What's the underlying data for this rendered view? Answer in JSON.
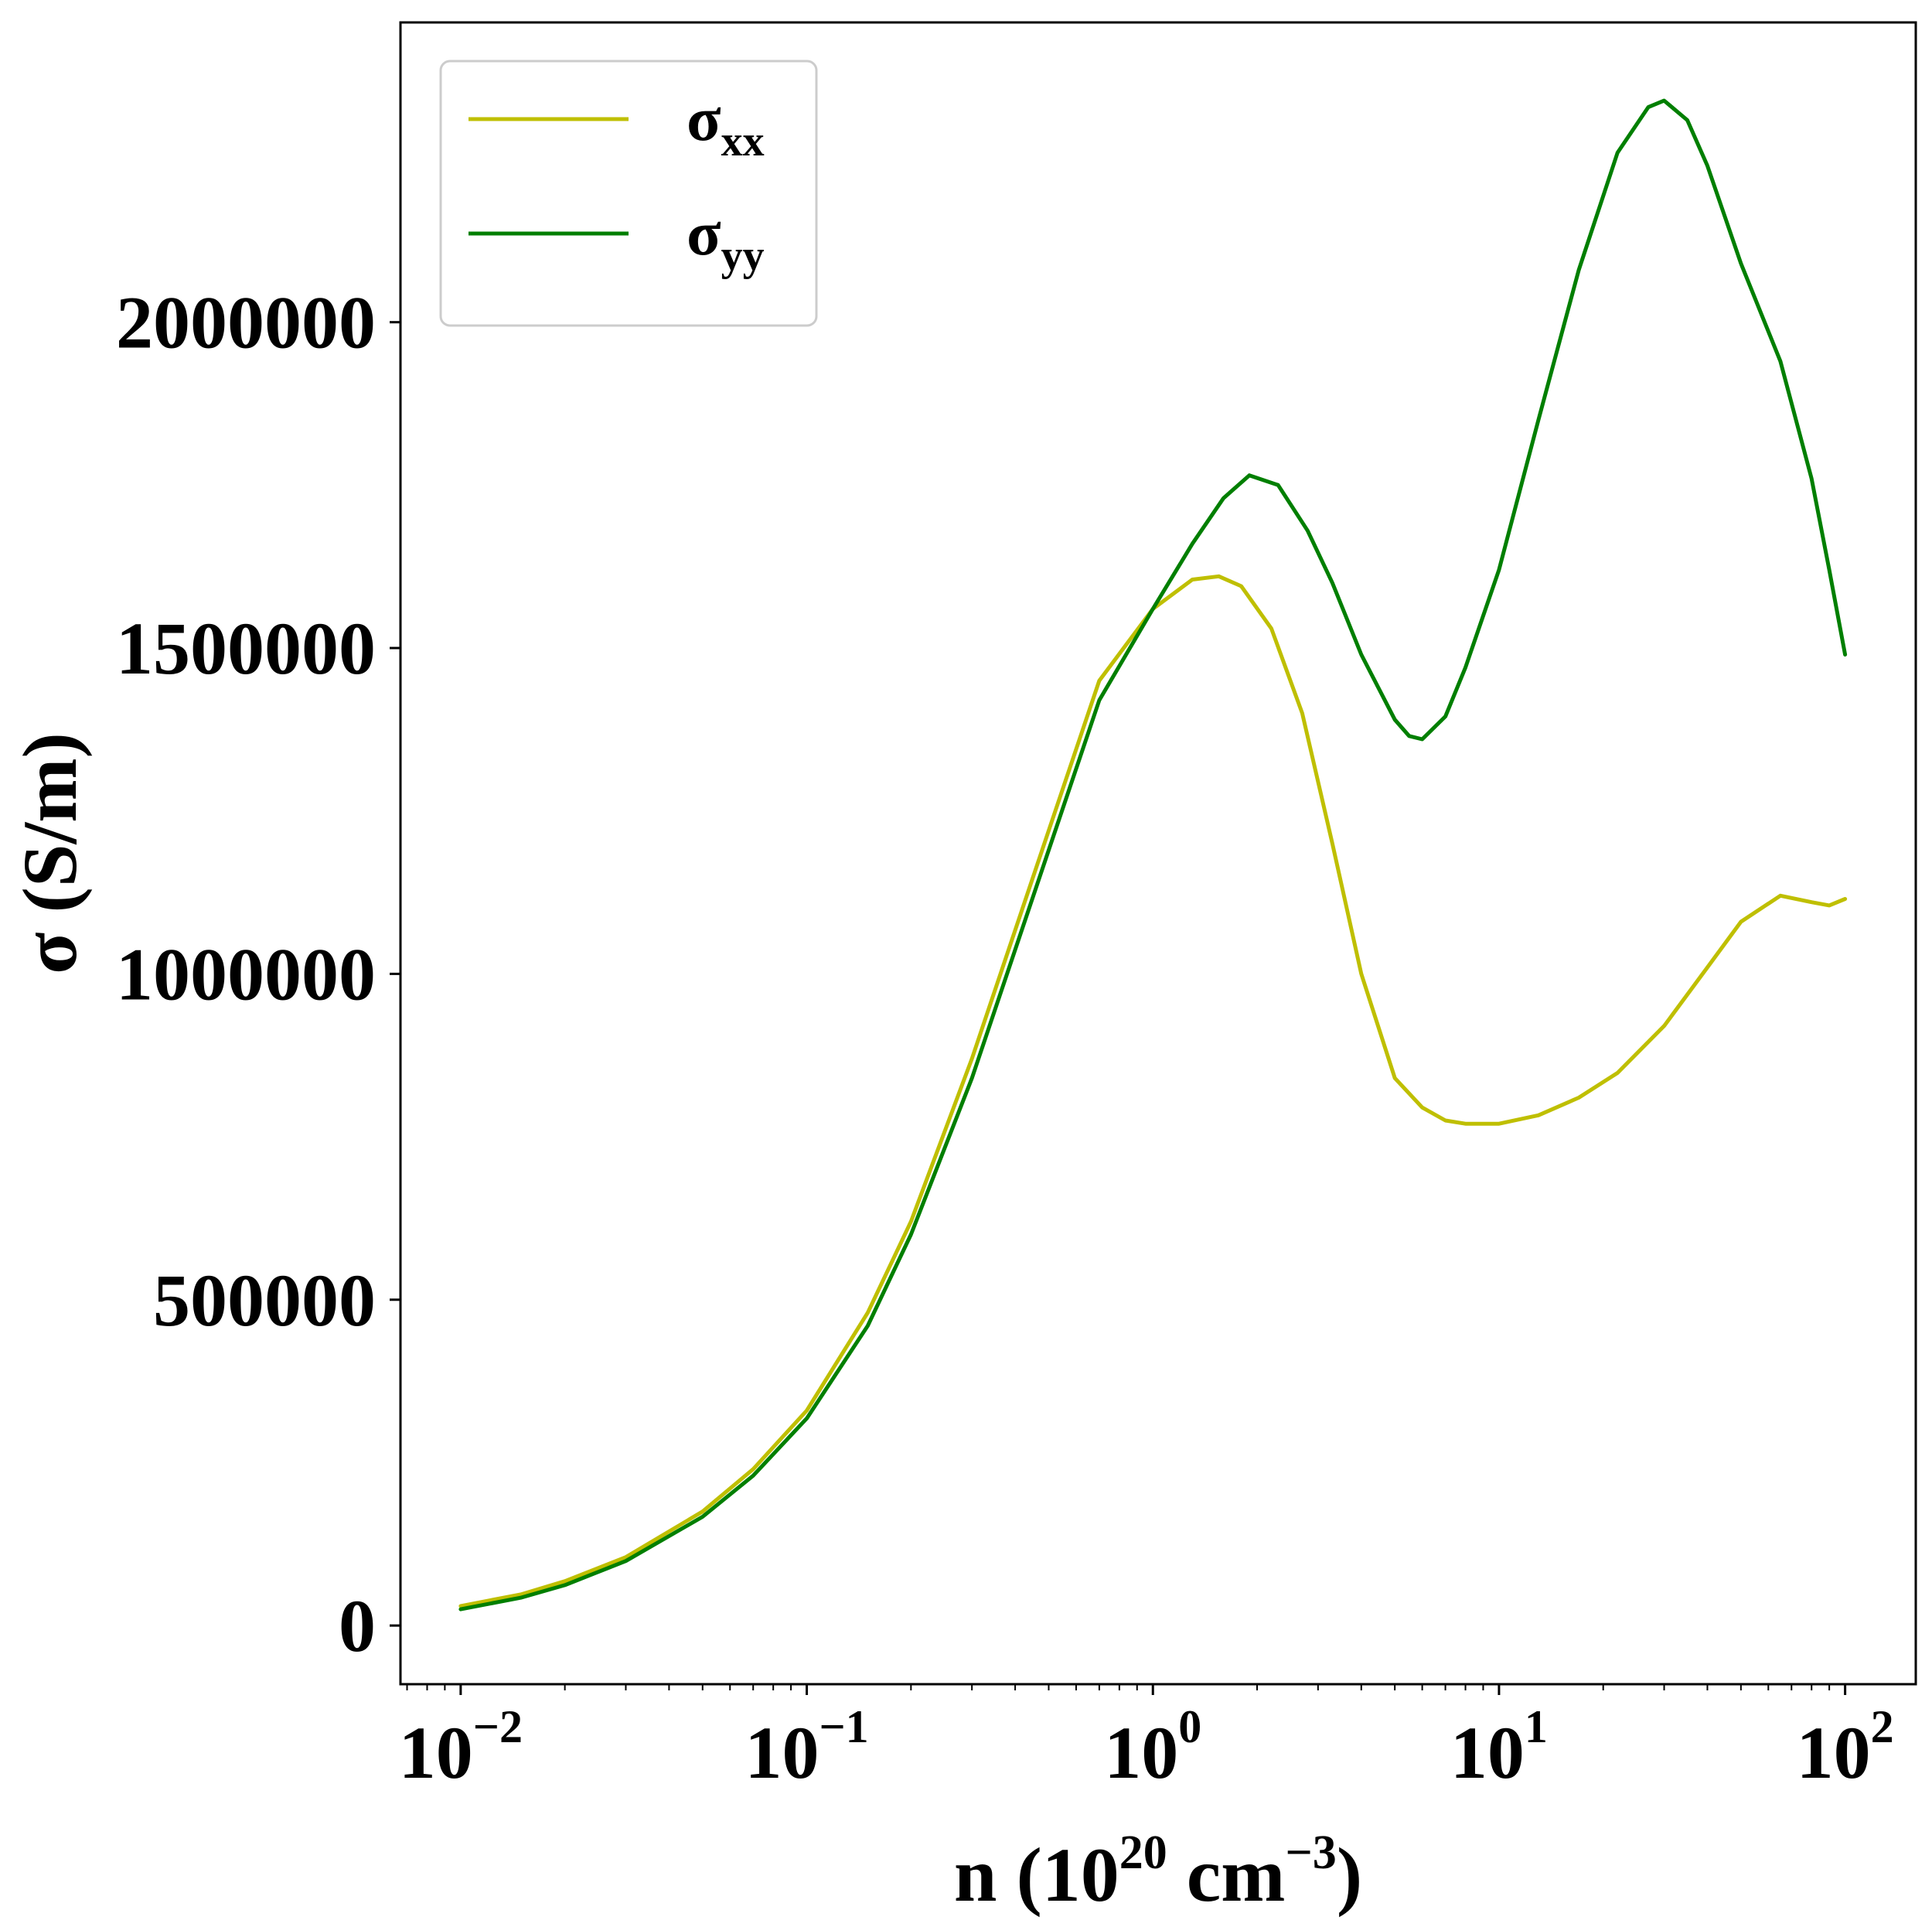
{
  "chart_data": {
    "type": "line",
    "xscale": "log",
    "xlim": [
      0.0067,
      160
    ],
    "ylim": [
      -90000,
      2460000
    ],
    "xlabel": {
      "prefix": "n (10",
      "sup1": "20",
      "middle": " cm",
      "sup2": "−3",
      "suffix": ")"
    },
    "ylabel": "σ (S/m)",
    "xticks": [
      {
        "value": 0.01,
        "base": "10",
        "exp": "−2"
      },
      {
        "value": 0.1,
        "base": "10",
        "exp": "−1"
      },
      {
        "value": 1,
        "base": "10",
        "exp": "0"
      },
      {
        "value": 10,
        "base": "10",
        "exp": "1"
      },
      {
        "value": 100,
        "base": "10",
        "exp": "2"
      }
    ],
    "yticks": [
      {
        "value": 0,
        "label": "0"
      },
      {
        "value": 500000,
        "label": "500000"
      },
      {
        "value": 1000000,
        "label": "1000000"
      },
      {
        "value": 1500000,
        "label": "1500000"
      },
      {
        "value": 2000000,
        "label": "2000000"
      }
    ],
    "legend": {
      "location": "upper left"
    },
    "series": [
      {
        "name": "σ",
        "subscript": "xx",
        "color": "#bfbf00",
        "x": [
          0.01,
          0.015,
          0.02,
          0.03,
          0.05,
          0.07,
          0.1,
          0.15,
          0.2,
          0.3,
          0.5,
          0.7,
          1.0,
          1.3,
          1.55,
          1.8,
          2.2,
          2.7,
          3.3,
          4.0,
          5.0,
          6.0,
          7.0,
          8.0,
          10,
          13,
          17,
          22,
          30,
          40,
          50,
          65,
          80,
          90,
          100
        ],
        "y": [
          30000,
          48000,
          68000,
          105000,
          175000,
          240000,
          330000,
          480000,
          620000,
          870000,
          1220000,
          1450000,
          1560000,
          1605000,
          1610000,
          1595000,
          1530000,
          1400000,
          1200000,
          1000000,
          840000,
          795000,
          775000,
          770000,
          770000,
          783000,
          810000,
          848000,
          920000,
          1010000,
          1080000,
          1120000,
          1110000,
          1105000,
          1115000
        ]
      },
      {
        "name": "σ",
        "subscript": "yy",
        "color": "#007f00",
        "x": [
          0.01,
          0.015,
          0.02,
          0.03,
          0.05,
          0.07,
          0.1,
          0.15,
          0.2,
          0.3,
          0.5,
          0.7,
          1.0,
          1.3,
          1.6,
          1.9,
          2.3,
          2.8,
          3.3,
          4.0,
          5.0,
          5.5,
          6.0,
          7.0,
          8.0,
          10,
          13,
          17,
          22,
          27,
          30,
          35,
          40,
          50,
          65,
          80,
          90,
          100
        ],
        "y": [
          25000,
          43000,
          62000,
          99000,
          167000,
          230000,
          318000,
          460000,
          600000,
          840000,
          1190000,
          1420000,
          1560000,
          1660000,
          1730000,
          1765000,
          1750000,
          1680000,
          1600000,
          1490000,
          1390000,
          1365000,
          1360000,
          1395000,
          1470000,
          1620000,
          1850000,
          2080000,
          2260000,
          2330000,
          2340000,
          2310000,
          2240000,
          2090000,
          1940000,
          1760000,
          1620000,
          1490000
        ]
      }
    ]
  }
}
